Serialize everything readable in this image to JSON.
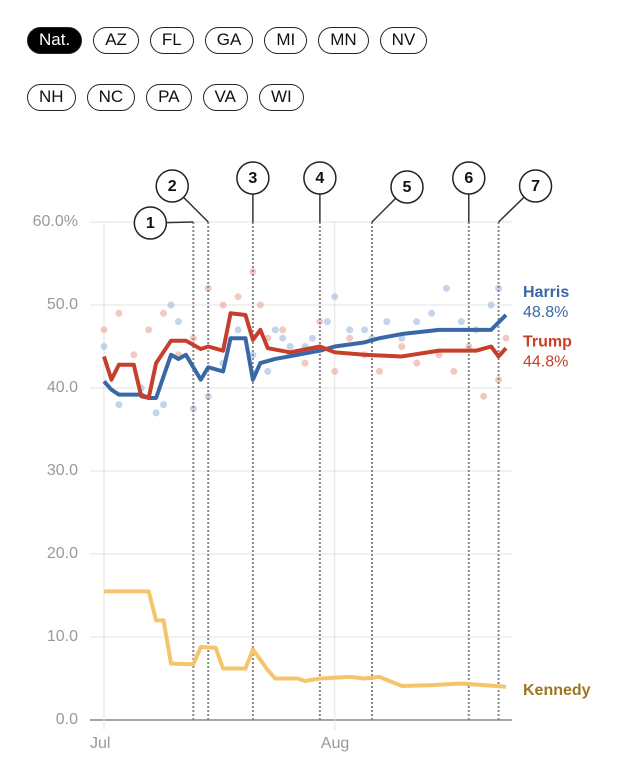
{
  "filters": {
    "rows": [
      [
        "Nat.",
        "AZ",
        "FL",
        "GA",
        "MI",
        "MN",
        "NV"
      ],
      [
        "NH",
        "NC",
        "PA",
        "VA",
        "WI"
      ]
    ],
    "selected": "Nat."
  },
  "chart_data": {
    "type": "line",
    "xlim": [
      0,
      54
    ],
    "xticks": [
      {
        "value": 0,
        "label": "Jul"
      },
      {
        "value": 31,
        "label": "Aug"
      }
    ],
    "ylim": [
      0,
      60
    ],
    "yticks": [
      {
        "value": 0,
        "label": "0.0"
      },
      {
        "value": 10,
        "label": "10.0"
      },
      {
        "value": 20,
        "label": "20.0"
      },
      {
        "value": 30,
        "label": "30.0"
      },
      {
        "value": 40,
        "label": "40.0"
      },
      {
        "value": 50,
        "label": "50.0"
      },
      {
        "value": 60,
        "label": "60.0%"
      }
    ],
    "grid": true,
    "series": [
      {
        "name": "Harris",
        "color": "#3a68a6",
        "label_color": "#3a68a6",
        "x": [
          0,
          1,
          2,
          5,
          6,
          7,
          9,
          10,
          11,
          13,
          14,
          16,
          17,
          19,
          20,
          21,
          23,
          26,
          29,
          31,
          35,
          37,
          40,
          45,
          49,
          52,
          54
        ],
        "values": [
          40.8,
          39.8,
          39.2,
          39.2,
          38.8,
          38.8,
          44,
          43.5,
          44,
          41,
          42.5,
          42,
          46,
          46,
          41,
          43,
          43.5,
          44,
          44.5,
          45,
          45.5,
          46,
          46.5,
          47,
          47,
          47,
          48.8
        ],
        "value_labels": [
          null,
          null,
          null,
          null,
          null,
          null,
          null,
          null,
          null,
          null,
          null,
          null,
          null,
          null,
          null,
          null,
          null,
          null,
          null,
          null,
          null,
          null,
          null,
          null,
          null,
          null,
          "48.8%"
        ]
      },
      {
        "name": "Trump",
        "color": "#c63f2a",
        "label_color": "#c63f2a",
        "x": [
          0,
          1,
          2,
          4,
          5,
          6,
          7,
          9,
          11,
          13,
          14,
          16,
          17,
          19,
          20,
          21,
          22,
          25,
          29,
          31,
          35,
          40,
          45,
          50,
          52,
          53,
          54
        ],
        "values": [
          43.8,
          41,
          42.8,
          42.8,
          39,
          38.8,
          43,
          45.7,
          45.7,
          44.7,
          45,
          44.5,
          49,
          48.8,
          45.8,
          47,
          44.8,
          44.3,
          45,
          44.3,
          44,
          43.8,
          44.5,
          44.5,
          45,
          43.8,
          44.8
        ],
        "value_labels": [
          null,
          null,
          null,
          null,
          null,
          null,
          null,
          null,
          null,
          null,
          null,
          null,
          null,
          null,
          null,
          null,
          null,
          null,
          null,
          null,
          null,
          null,
          null,
          null,
          null,
          null,
          "44.8%"
        ]
      },
      {
        "name": "Kennedy",
        "color": "#f4c56c",
        "label_color": "#9c7620",
        "x": [
          0,
          6,
          7,
          8,
          9,
          12,
          13,
          15,
          16,
          19,
          20,
          22,
          23,
          26,
          27,
          29,
          33,
          35,
          37,
          40,
          44,
          48,
          54
        ],
        "values": [
          15.5,
          15.5,
          12,
          12,
          6.8,
          6.7,
          8.8,
          8.7,
          6.2,
          6.2,
          8.5,
          6,
          5,
          5,
          4.7,
          5,
          5.2,
          5,
          5.2,
          4.1,
          4.2,
          4.4,
          4
        ]
      }
    ],
    "polls": [
      {
        "color": "#9db8dc",
        "x": [
          0,
          2,
          5,
          7,
          8,
          9,
          10,
          12,
          14,
          16,
          18,
          20,
          22,
          23,
          24,
          25,
          27,
          28,
          30,
          31,
          33,
          35,
          36,
          38,
          40,
          42,
          44,
          46,
          48,
          50,
          52,
          53
        ],
        "values": [
          45,
          38,
          40,
          37,
          38,
          50,
          48,
          37.5,
          39,
          43,
          47,
          44,
          42,
          47,
          46,
          45,
          45,
          46,
          48,
          51,
          47,
          47,
          46,
          48,
          46,
          48,
          49,
          52,
          48,
          47,
          50,
          52
        ]
      },
      {
        "color": "#e8a596",
        "x": [
          0,
          2,
          4,
          6,
          8,
          10,
          12,
          14,
          16,
          18,
          20,
          21,
          22,
          24,
          25,
          27,
          29,
          31,
          33,
          35,
          37,
          40,
          42,
          45,
          47,
          49,
          51,
          53,
          54
        ],
        "values": [
          47,
          49,
          44,
          47,
          49,
          44,
          46,
          52,
          50,
          51,
          54,
          50,
          46,
          47,
          44,
          43,
          48,
          42,
          46,
          44,
          42,
          45,
          43,
          44,
          42,
          45,
          39,
          41,
          46
        ]
      }
    ],
    "events": [
      {
        "label": "1",
        "x": 12
      },
      {
        "label": "2",
        "x": 14
      },
      {
        "label": "3",
        "x": 20
      },
      {
        "label": "4",
        "x": 29
      },
      {
        "label": "5",
        "x": 36
      },
      {
        "label": "6",
        "x": 49
      },
      {
        "label": "7",
        "x": 53
      }
    ]
  }
}
